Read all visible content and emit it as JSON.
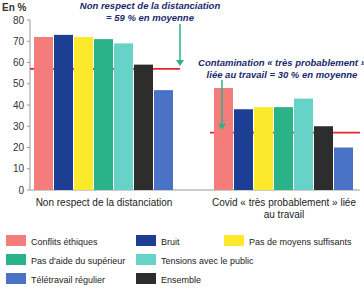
{
  "chart_data": {
    "type": "bar",
    "y_label": "En %",
    "categories": [
      "Non respect de la distanciation",
      "Covid « très probablement » liée au travail"
    ],
    "series": [
      {
        "name": "Conflits éthiques",
        "color": "#f47d7b",
        "values": [
          72,
          48
        ]
      },
      {
        "name": "Bruit",
        "color": "#1c3f94",
        "values": [
          73,
          38
        ]
      },
      {
        "name": "Pas de moyens suffisants",
        "color": "#fde92c",
        "values": [
          72,
          39
        ]
      },
      {
        "name": "Pas d'aide du supérieur",
        "color": "#2ab388",
        "values": [
          71,
          39
        ]
      },
      {
        "name": "Tensions avec le public",
        "color": "#66d2c8",
        "values": [
          69,
          43
        ]
      },
      {
        "name": "Ensemble",
        "color": "#2d2d2d",
        "values": [
          59,
          30
        ]
      },
      {
        "name": "Télétravail régulier",
        "color": "#4a73c6",
        "values": [
          47,
          20
        ]
      }
    ],
    "ylim": [
      0,
      80
    ],
    "yticks": [
      0,
      10,
      20,
      30,
      40,
      50,
      60,
      70,
      80
    ],
    "grid": false,
    "reference_lines": [
      {
        "category": 0,
        "value": 57,
        "color": "#e8262a"
      },
      {
        "category": 1,
        "value": 27,
        "color": "#e8262a"
      }
    ],
    "annotations": [
      {
        "category": 0,
        "text": [
          "Non respect de la distanciation",
          "= 59 % en moyenne"
        ]
      },
      {
        "category": 1,
        "text": [
          "Contamination « très probablement »",
          "liée au travail = 30 % en moyenne"
        ]
      }
    ]
  }
}
